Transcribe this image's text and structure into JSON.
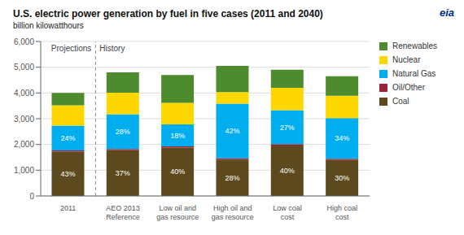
{
  "chart_data": {
    "type": "bar",
    "title": "U.S. electric power generation by fuel in five cases (2011 and 2040)",
    "subtitle": "billion kilowatthours",
    "categories": [
      "2011",
      "AEO 2013\nReference",
      "Low oil and\ngas resource",
      "High oil and\ngas resource",
      "Low coal\ncost",
      "High coal\ncost"
    ],
    "series": [
      {
        "name": "Coal",
        "color": "#5c4a1e",
        "values": [
          1720,
          1776,
          1880,
          1414,
          1960,
          1395
        ],
        "share_labels": [
          "43%",
          "37%",
          "40%",
          "28%",
          "40%",
          "30%"
        ]
      },
      {
        "name": "Oil/Other",
        "color": "#9b2335",
        "values": [
          50,
          50,
          50,
          50,
          50,
          50
        ]
      },
      {
        "name": "Natural Gas",
        "color": "#00aeef",
        "values": [
          960,
          1344,
          846,
          2121,
          1323,
          1581
        ],
        "share_labels": [
          "24%",
          "28%",
          "18%",
          "42%",
          "27%",
          "34%"
        ]
      },
      {
        "name": "Nuclear",
        "color": "#ffd700",
        "values": [
          790,
          840,
          840,
          450,
          870,
          870
        ]
      },
      {
        "name": "Renewables",
        "color": "#4e8b2e",
        "values": [
          480,
          790,
          1084,
          1015,
          697,
          754
        ]
      }
    ],
    "stacked": true,
    "ylim": [
      0,
      6000
    ],
    "yticks": [
      0,
      {
        "value": 1000,
        "label": "1,000"
      },
      {
        "value": 2000,
        "label": "2,000"
      },
      {
        "value": 3000,
        "label": "3,000"
      },
      {
        "value": 4000,
        "label": "4,000"
      },
      {
        "value": 5000,
        "label": "5,000"
      },
      {
        "value": 6000,
        "label": "6,000"
      }
    ],
    "grid": true,
    "legend": "right",
    "annotations": [
      "History",
      "Projections",
      "eia"
    ]
  }
}
